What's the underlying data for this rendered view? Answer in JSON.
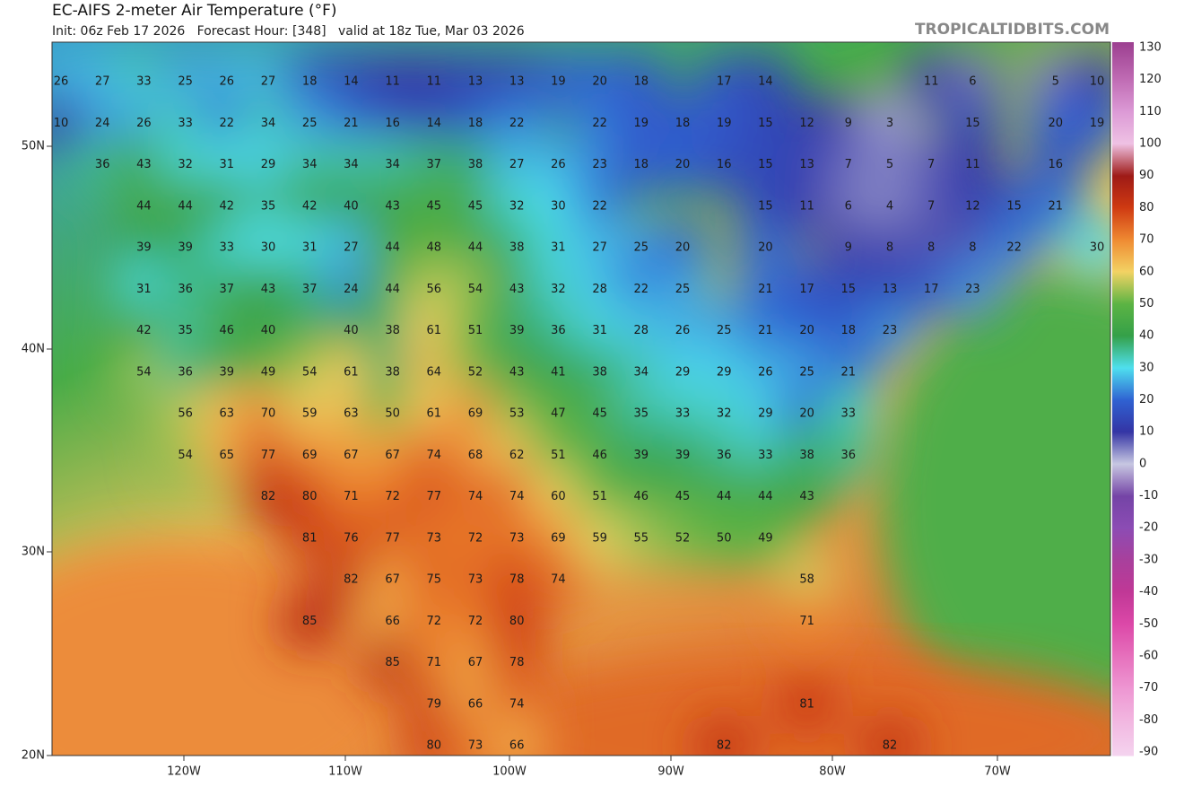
{
  "header": {
    "title": "EC-AIFS 2-meter Air Temperature (°F)",
    "subtitle": "Init: 06z Feb 17 2026   Forecast Hour: [348]   valid at 18z Tue, Mar 03 2026",
    "watermark": "TROPICALTIDBITS.COM"
  },
  "map": {
    "latitude_labels": [
      "50N",
      "40N",
      "30N",
      "20N"
    ],
    "longitude_labels": [
      "120W",
      "110W",
      "100W",
      "90W",
      "80W",
      "70W"
    ],
    "temperature_rows": [
      [
        26,
        27,
        33,
        25,
        26,
        27,
        18,
        14,
        11,
        11,
        13,
        13,
        19,
        20,
        18,
        null,
        17,
        14,
        null,
        null,
        null,
        11,
        6,
        null,
        5,
        10
      ],
      [
        10,
        24,
        26,
        33,
        22,
        34,
        25,
        21,
        16,
        14,
        18,
        22,
        null,
        22,
        19,
        18,
        19,
        15,
        12,
        9,
        3,
        null,
        15,
        null,
        20,
        19
      ],
      [
        null,
        36,
        43,
        32,
        31,
        29,
        34,
        34,
        34,
        37,
        38,
        27,
        26,
        23,
        18,
        20,
        16,
        15,
        13,
        7,
        5,
        7,
        11,
        null,
        16,
        null
      ],
      [
        null,
        null,
        44,
        44,
        42,
        35,
        42,
        40,
        43,
        45,
        45,
        32,
        30,
        22,
        null,
        null,
        null,
        15,
        11,
        6,
        4,
        7,
        12,
        15,
        21,
        null
      ],
      [
        null,
        null,
        39,
        39,
        33,
        30,
        31,
        27,
        44,
        48,
        44,
        38,
        31,
        27,
        25,
        20,
        null,
        20,
        null,
        9,
        8,
        8,
        8,
        22,
        null,
        30
      ],
      [
        null,
        null,
        31,
        36,
        37,
        43,
        37,
        24,
        44,
        56,
        54,
        43,
        32,
        28,
        22,
        25,
        null,
        21,
        17,
        15,
        13,
        17,
        23,
        null,
        null,
        null
      ],
      [
        null,
        null,
        42,
        35,
        46,
        40,
        null,
        40,
        38,
        61,
        51,
        39,
        36,
        31,
        28,
        26,
        25,
        21,
        20,
        18,
        23,
        null,
        null,
        null,
        null,
        null
      ],
      [
        null,
        null,
        54,
        36,
        39,
        49,
        54,
        61,
        38,
        64,
        52,
        43,
        41,
        38,
        34,
        29,
        29,
        26,
        25,
        21,
        null,
        null,
        null,
        null,
        null,
        null
      ],
      [
        null,
        null,
        null,
        56,
        63,
        70,
        59,
        63,
        50,
        61,
        69,
        53,
        47,
        45,
        35,
        33,
        32,
        29,
        20,
        33,
        null,
        null,
        null,
        null,
        null,
        null
      ],
      [
        null,
        null,
        null,
        54,
        65,
        77,
        69,
        67,
        67,
        74,
        68,
        62,
        51,
        46,
        39,
        39,
        36,
        33,
        38,
        36,
        null,
        null,
        null,
        null,
        null,
        null
      ],
      [
        null,
        null,
        null,
        null,
        null,
        82,
        80,
        71,
        72,
        77,
        74,
        74,
        60,
        51,
        46,
        45,
        44,
        44,
        43,
        null,
        null,
        null,
        null,
        null,
        null,
        null
      ],
      [
        null,
        null,
        null,
        null,
        null,
        null,
        81,
        76,
        77,
        73,
        72,
        73,
        69,
        59,
        55,
        52,
        50,
        49,
        null,
        null,
        null,
        null,
        null,
        null,
        null,
        null
      ],
      [
        null,
        null,
        null,
        null,
        null,
        null,
        null,
        82,
        67,
        75,
        73,
        78,
        74,
        null,
        null,
        null,
        null,
        null,
        58,
        null,
        null,
        null,
        null,
        null,
        null,
        null
      ],
      [
        null,
        null,
        null,
        null,
        null,
        null,
        85,
        null,
        66,
        72,
        72,
        80,
        null,
        null,
        null,
        null,
        null,
        null,
        71,
        null,
        null,
        null,
        null,
        null,
        null,
        null
      ],
      [
        null,
        null,
        null,
        null,
        null,
        null,
        null,
        null,
        85,
        71,
        67,
        78,
        null,
        null,
        null,
        null,
        null,
        null,
        null,
        null,
        null,
        null,
        null,
        null,
        null,
        null
      ],
      [
        null,
        null,
        null,
        null,
        null,
        null,
        null,
        null,
        null,
        79,
        66,
        74,
        null,
        null,
        null,
        null,
        null,
        null,
        81,
        null,
        null,
        null,
        null,
        null,
        null,
        null
      ],
      [
        null,
        null,
        null,
        null,
        null,
        null,
        null,
        null,
        null,
        80,
        73,
        66,
        null,
        null,
        null,
        null,
        82,
        null,
        null,
        null,
        82,
        null,
        null,
        null,
        null,
        null
      ]
    ]
  },
  "colorbar": {
    "ticks": [
      130,
      120,
      110,
      100,
      90,
      80,
      70,
      60,
      50,
      40,
      30,
      20,
      10,
      0,
      -10,
      -20,
      -30,
      -40,
      -50,
      -60,
      -70,
      -80,
      -90
    ],
    "colors": [
      "#9c3f90",
      "#c06cb4",
      "#dc9ad6",
      "#efc2e4",
      "#9e1a16",
      "#cf3a12",
      "#ef8a32",
      "#f3d364",
      "#5cb444",
      "#34a048",
      "#4fe0ef",
      "#2f62d2",
      "#3434a4",
      "#c8c8e2",
      "#7444a6",
      "#8c4cb4",
      "#a8409c",
      "#c03896",
      "#dc48a8",
      "#e670bc",
      "#ee96d2",
      "#f2b6e0",
      "#f4d4ef"
    ]
  }
}
